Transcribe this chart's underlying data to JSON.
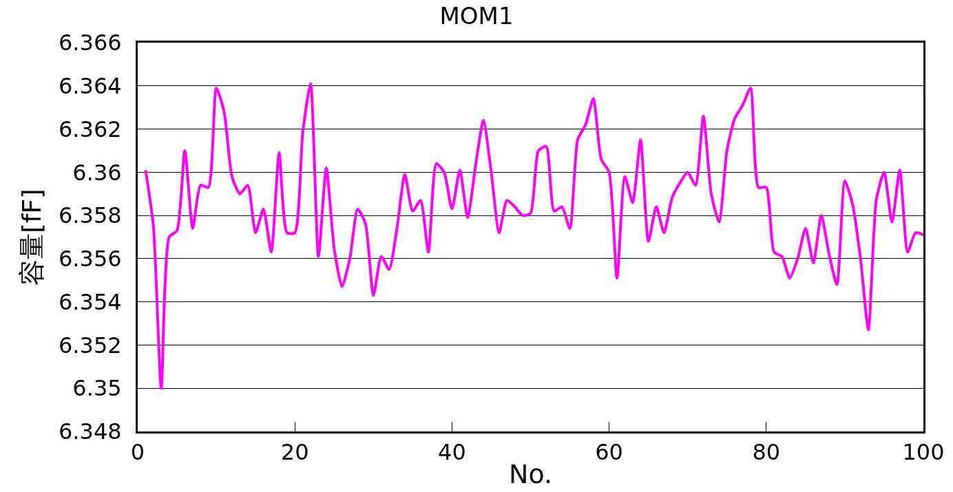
{
  "chart_data": {
    "type": "line",
    "title": "MOM1",
    "xlabel": "No.",
    "ylabel": "容量[fF]",
    "x": [
      1,
      2,
      3,
      4,
      5,
      6,
      7,
      8,
      9,
      10,
      11,
      12,
      13,
      14,
      15,
      16,
      17,
      18,
      19,
      20,
      21,
      22,
      23,
      24,
      25,
      26,
      27,
      28,
      29,
      30,
      31,
      32,
      33,
      34,
      35,
      36,
      37,
      38,
      39,
      40,
      41,
      42,
      43,
      44,
      45,
      46,
      47,
      48,
      49,
      50,
      51,
      52,
      53,
      54,
      55,
      56,
      57,
      58,
      59,
      60,
      61,
      62,
      63,
      64,
      65,
      66,
      67,
      68,
      69,
      70,
      71,
      72,
      73,
      74,
      75,
      76,
      77,
      78,
      79,
      80,
      81,
      82,
      83,
      84,
      85,
      86,
      87,
      88,
      89,
      90,
      91,
      92,
      93,
      94,
      95,
      96,
      97,
      98,
      99,
      100
    ],
    "series": [
      {
        "color": "#ff00ff",
        "values": [
          6.3601,
          6.3575,
          6.35,
          6.357,
          6.3573,
          6.361,
          6.3574,
          6.3594,
          6.3593,
          6.3639,
          6.3628,
          6.3598,
          6.359,
          6.3594,
          6.3572,
          6.3583,
          6.3563,
          6.3609,
          6.3572,
          6.3572,
          6.3618,
          6.3641,
          6.3561,
          6.3602,
          6.3565,
          6.3547,
          6.356,
          6.3583,
          6.3576,
          6.3543,
          6.3561,
          6.3555,
          6.3574,
          6.3599,
          6.3582,
          6.3587,
          6.3563,
          6.3604,
          6.36,
          6.3583,
          6.3601,
          6.3579,
          6.3603,
          6.3624,
          6.36,
          6.3572,
          6.3587,
          6.3584,
          6.358,
          6.3581,
          6.361,
          6.3612,
          6.3582,
          6.3584,
          6.3574,
          6.3615,
          6.3622,
          6.3634,
          6.3606,
          6.36,
          6.3551,
          6.3598,
          6.3586,
          6.3615,
          6.3568,
          6.3584,
          6.3572,
          6.3588,
          6.3595,
          6.36,
          6.3594,
          6.3626,
          6.359,
          6.3577,
          6.361,
          6.3625,
          6.3631,
          6.3639,
          6.3593,
          6.3593,
          6.3563,
          6.3561,
          6.3551,
          6.356,
          6.3574,
          6.3558,
          6.358,
          6.3562,
          6.3548,
          6.3596,
          6.3585,
          6.356,
          6.3527,
          6.3587,
          6.36,
          6.3577,
          6.3601,
          6.3563,
          6.3572,
          6.3571
        ]
      }
    ],
    "xlim": [
      0,
      100
    ],
    "xticks": [
      0,
      20,
      40,
      60,
      80,
      100
    ],
    "ylim": [
      6.348,
      6.366
    ],
    "yticks": [
      6.348,
      6.35,
      6.352,
      6.354,
      6.356,
      6.358,
      6.36,
      6.362,
      6.364,
      6.366
    ],
    "grid": "y",
    "marker": "none",
    "line_style": "solid"
  }
}
